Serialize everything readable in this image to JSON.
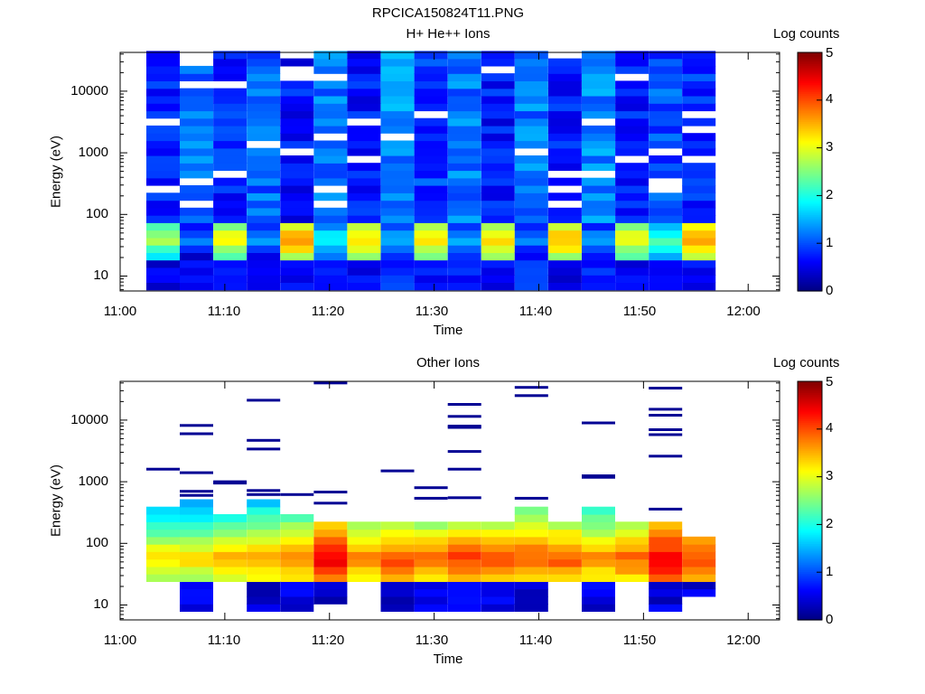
{
  "figure_title": "RPCICA150824T11.PNG",
  "colorbar_label": "Log counts",
  "colorbar_ticks": [
    "0",
    "1",
    "2",
    "3",
    "4",
    "5"
  ],
  "chart_data": [
    {
      "type": "heatmap",
      "title": "H+ He++ Ions",
      "xlabel": "Time",
      "ylabel": "Energy (eV)",
      "x_ticks": [
        "11:00",
        "11:10",
        "11:20",
        "11:30",
        "11:40",
        "11:50",
        "12:00"
      ],
      "y_ticks": [
        "10",
        "100",
        "1000",
        "10000"
      ],
      "y_scale": "log",
      "ylim": [
        6,
        45000
      ],
      "xlim": [
        "11:00",
        "12:03"
      ],
      "clim": [
        0,
        5
      ],
      "time_columns": [
        "11:02.5",
        "11:05.7",
        "11:08.9",
        "11:12.1",
        "11:15.3",
        "11:18.5",
        "11:21.7",
        "11:24.9",
        "11:28.1",
        "11:31.3",
        "11:34.5",
        "11:37.7",
        "11:40.9",
        "11:44.1",
        "11:47.3",
        "11:50.5",
        "11:53.7"
      ],
      "column_profiles": [
        {
          "low": 0.3,
          "peak": 2.6,
          "high": 0.6
        },
        {
          "low": 0.5,
          "peak": 1.1,
          "high": 1.1
        },
        {
          "low": 0.4,
          "peak": 3.0,
          "high": 0.7
        },
        {
          "low": 0.5,
          "peak": 1.3,
          "high": 1.0
        },
        {
          "low": 0.4,
          "peak": 3.5,
          "high": 0.6
        },
        {
          "low": 0.5,
          "peak": 1.8,
          "high": 1.1
        },
        {
          "low": 0.4,
          "peak": 3.2,
          "high": 0.6
        },
        {
          "low": 0.6,
          "peak": 1.5,
          "high": 1.2
        },
        {
          "low": 0.5,
          "peak": 3.1,
          "high": 0.8
        },
        {
          "low": 0.5,
          "peak": 1.4,
          "high": 1.1
        },
        {
          "low": 0.4,
          "peak": 3.2,
          "high": 0.6
        },
        {
          "low": 0.6,
          "peak": 1.2,
          "high": 1.1
        },
        {
          "low": 0.3,
          "peak": 3.4,
          "high": 0.6
        },
        {
          "low": 0.6,
          "peak": 1.3,
          "high": 1.2
        },
        {
          "low": 0.4,
          "peak": 3.0,
          "high": 0.6
        },
        {
          "low": 0.5,
          "peak": 2.1,
          "high": 0.9
        },
        {
          "low": 0.4,
          "peak": 3.6,
          "high": 0.7
        }
      ]
    },
    {
      "type": "heatmap",
      "title": "Other Ions",
      "xlabel": "Time",
      "ylabel": "Energy (eV)",
      "x_ticks": [
        "11:00",
        "11:10",
        "11:20",
        "11:30",
        "11:40",
        "11:50",
        "12:00"
      ],
      "y_ticks": [
        "10",
        "100",
        "1000",
        "10000"
      ],
      "y_scale": "log",
      "ylim": [
        6,
        45000
      ],
      "xlim": [
        "11:00",
        "12:03"
      ],
      "clim": [
        0,
        5
      ],
      "time_columns": [
        "11:02.5",
        "11:05.7",
        "11:08.9",
        "11:12.1",
        "11:15.3",
        "11:18.5",
        "11:21.7",
        "11:24.9",
        "11:28.1",
        "11:31.3",
        "11:34.5",
        "11:37.7",
        "11:40.9",
        "11:44.1",
        "11:47.3",
        "11:50.5",
        "11:53.7"
      ],
      "column_profiles": [
        {
          "peak": 3.2,
          "top_eV": 450,
          "bottom_eV": 22
        },
        {
          "peak": 3.2,
          "top_eV": 480,
          "bottom_eV": 7
        },
        {
          "peak": 3.4,
          "top_eV": 300,
          "bottom_eV": 22
        },
        {
          "peak": 3.5,
          "top_eV": 520,
          "bottom_eV": 7
        },
        {
          "peak": 3.7,
          "top_eV": 320,
          "bottom_eV": 7
        },
        {
          "peak": 4.3,
          "top_eV": 240,
          "bottom_eV": 10
        },
        {
          "peak": 3.6,
          "top_eV": 200,
          "bottom_eV": 22
        },
        {
          "peak": 3.9,
          "top_eV": 230,
          "bottom_eV": 7
        },
        {
          "peak": 3.7,
          "top_eV": 210,
          "bottom_eV": 7
        },
        {
          "peak": 4.0,
          "top_eV": 200,
          "bottom_eV": 7
        },
        {
          "peak": 3.8,
          "top_eV": 200,
          "bottom_eV": 7
        },
        {
          "peak": 3.9,
          "top_eV": 420,
          "bottom_eV": 7
        },
        {
          "peak": 3.9,
          "top_eV": 210,
          "bottom_eV": 22
        },
        {
          "peak": 3.6,
          "top_eV": 380,
          "bottom_eV": 7
        },
        {
          "peak": 3.8,
          "top_eV": 200,
          "bottom_eV": 22
        },
        {
          "peak": 4.4,
          "top_eV": 200,
          "bottom_eV": 7
        },
        {
          "peak": 4.0,
          "top_eV": 120,
          "bottom_eV": 14
        }
      ],
      "sparse_high_energy_counts_eV": [
        [
          1600
        ],
        [
          8200,
          6000,
          1400,
          700,
          600
        ],
        [
          1000,
          950
        ],
        [
          21000,
          4700,
          3400,
          720,
          620
        ],
        [
          620
        ],
        [
          40000,
          680,
          450
        ],
        [],
        [
          1500
        ],
        [
          800,
          540
        ],
        [
          18000,
          11500,
          8000,
          7600,
          3100,
          1600,
          550
        ],
        [],
        [
          34000,
          25000,
          540
        ],
        [],
        [
          9000,
          1250,
          1180
        ],
        [],
        [
          33000,
          15000,
          12000,
          7000,
          5800,
          2600,
          360
        ],
        []
      ]
    }
  ]
}
